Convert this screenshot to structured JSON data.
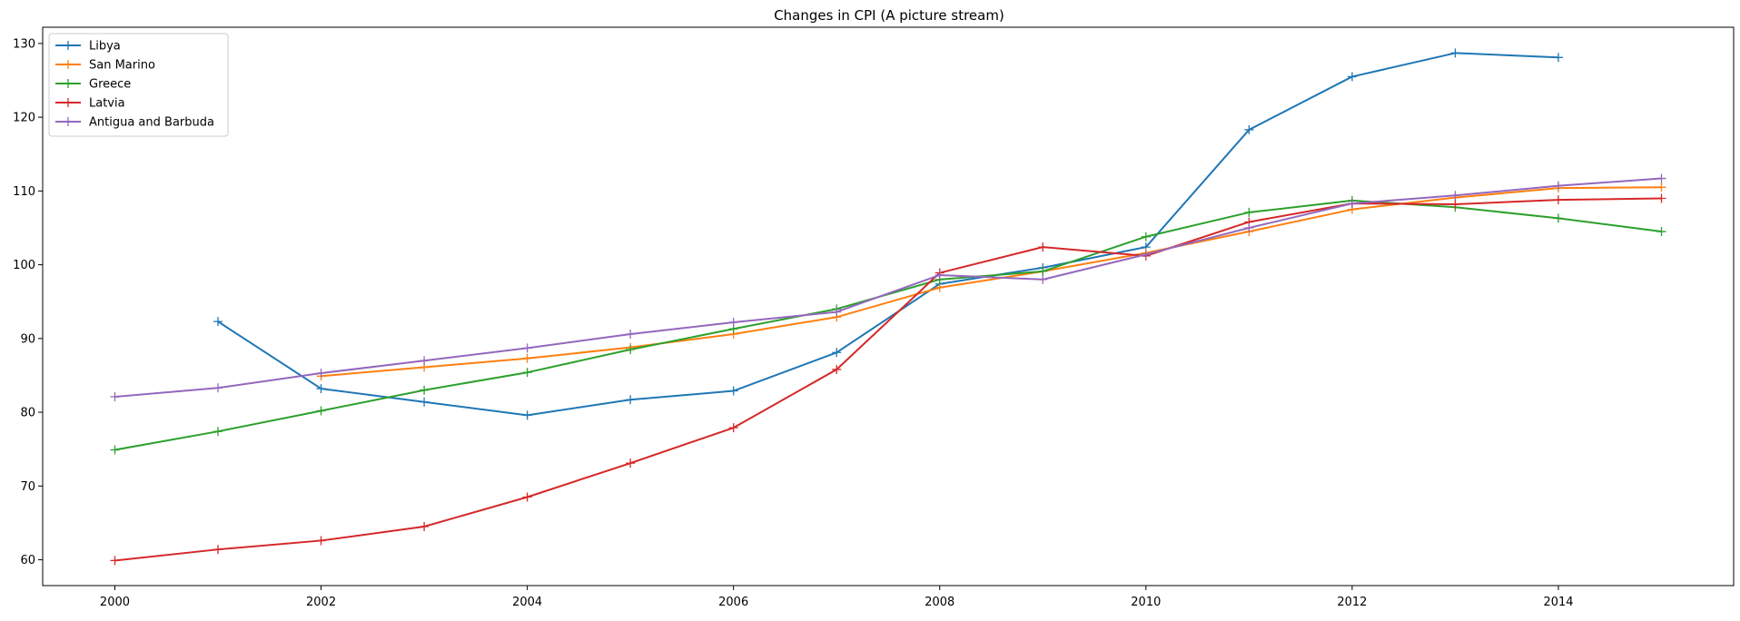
{
  "chart_data": {
    "type": "line",
    "title": "Changes in CPI (A picture stream)",
    "xlabel": "",
    "ylabel": "",
    "xlim": [
      1999.3,
      2015.7
    ],
    "ylim": [
      56.5,
      132.2
    ],
    "x_ticks": [
      2000,
      2002,
      2004,
      2006,
      2008,
      2010,
      2012,
      2014
    ],
    "x_tick_labels": [
      "2000",
      "2002",
      "2004",
      "2006",
      "2008",
      "2010",
      "2012",
      "2014"
    ],
    "y_ticks": [
      60,
      70,
      80,
      90,
      100,
      110,
      120,
      130
    ],
    "y_tick_labels": [
      "60",
      "70",
      "80",
      "90",
      "100",
      "110",
      "120",
      "130"
    ],
    "grid": false,
    "legend_position": "top-left",
    "marker": "plus",
    "series": [
      {
        "name": "Libya",
        "color": "#1f77b4",
        "x": [
          2001,
          2002,
          2003,
          2004,
          2005,
          2006,
          2007,
          2008,
          2009,
          2010,
          2011,
          2012,
          2013,
          2014
        ],
        "values": [
          92.3,
          83.2,
          81.4,
          79.6,
          81.7,
          82.9,
          88.1,
          97.4,
          99.6,
          102.4,
          118.3,
          125.5,
          128.7,
          128.1
        ]
      },
      {
        "name": "San Marino",
        "color": "#ff7f0e",
        "x": [
          2002,
          2003,
          2004,
          2005,
          2006,
          2007,
          2008,
          2009,
          2010,
          2011,
          2012,
          2013,
          2014,
          2015
        ],
        "values": [
          84.9,
          86.1,
          87.3,
          88.8,
          90.6,
          92.9,
          96.9,
          99.1,
          101.6,
          104.5,
          107.5,
          109.1,
          110.4,
          110.5
        ]
      },
      {
        "name": "Greece",
        "color": "#2ca02c",
        "x": [
          2000,
          2001,
          2002,
          2003,
          2004,
          2005,
          2006,
          2007,
          2008,
          2009,
          2010,
          2011,
          2012,
          2013,
          2014,
          2015
        ],
        "values": [
          74.9,
          77.4,
          80.2,
          83.0,
          85.4,
          88.5,
          91.3,
          94.0,
          98.0,
          99.1,
          103.8,
          107.1,
          108.7,
          107.8,
          106.3,
          104.5
        ]
      },
      {
        "name": "Latvia",
        "color": "#d62728",
        "x": [
          2000,
          2001,
          2002,
          2003,
          2004,
          2005,
          2006,
          2007,
          2008,
          2009,
          2010,
          2011,
          2012,
          2013,
          2014,
          2015
        ],
        "values": [
          59.9,
          61.4,
          62.6,
          64.5,
          68.5,
          73.1,
          77.9,
          85.8,
          98.9,
          102.4,
          101.2,
          105.8,
          108.3,
          108.2,
          108.8,
          109.0
        ]
      },
      {
        "name": "Antigua and Barbuda",
        "color": "#9467bd",
        "x": [
          2000,
          2001,
          2002,
          2003,
          2004,
          2005,
          2006,
          2007,
          2008,
          2009,
          2010,
          2011,
          2012,
          2013,
          2014,
          2015
        ],
        "values": [
          82.1,
          83.3,
          85.3,
          87.0,
          88.7,
          90.6,
          92.2,
          93.6,
          98.6,
          98.0,
          101.4,
          105.0,
          108.3,
          109.4,
          110.7,
          111.7
        ]
      }
    ]
  }
}
